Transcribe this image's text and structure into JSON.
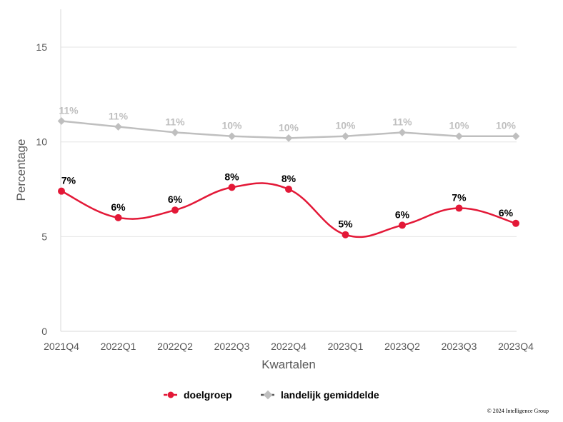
{
  "chart_data": {
    "type": "line",
    "xlabel": "Kwartalen",
    "ylabel": "Percentage",
    "ylim": [
      0,
      17
    ],
    "yticks": [
      "0",
      "5",
      "10",
      "15"
    ],
    "grid": true,
    "legend_position": "bottom",
    "categories": [
      "2021Q4",
      "2022Q1",
      "2022Q2",
      "2022Q3",
      "2022Q4",
      "2023Q1",
      "2023Q2",
      "2023Q3",
      "2023Q4"
    ],
    "series": [
      {
        "name": "doelgroep",
        "color": "#e31837",
        "marker": "circle",
        "values": [
          7.4,
          6.0,
          6.4,
          7.6,
          7.5,
          5.1,
          5.6,
          6.5,
          5.7
        ],
        "labels": [
          "7%",
          "6%",
          "6%",
          "8%",
          "8%",
          "5%",
          "6%",
          "7%",
          "6%"
        ]
      },
      {
        "name": "landelijk gemiddelde",
        "color": "#bfbfbf",
        "marker": "diamond",
        "values": [
          11.1,
          10.8,
          10.5,
          10.3,
          10.2,
          10.3,
          10.5,
          10.3,
          10.3
        ],
        "labels": [
          "11%",
          "11%",
          "11%",
          "10%",
          "10%",
          "10%",
          "11%",
          "10%",
          "10%"
        ]
      }
    ]
  },
  "copyright": "© 2024 Intelligence Group"
}
